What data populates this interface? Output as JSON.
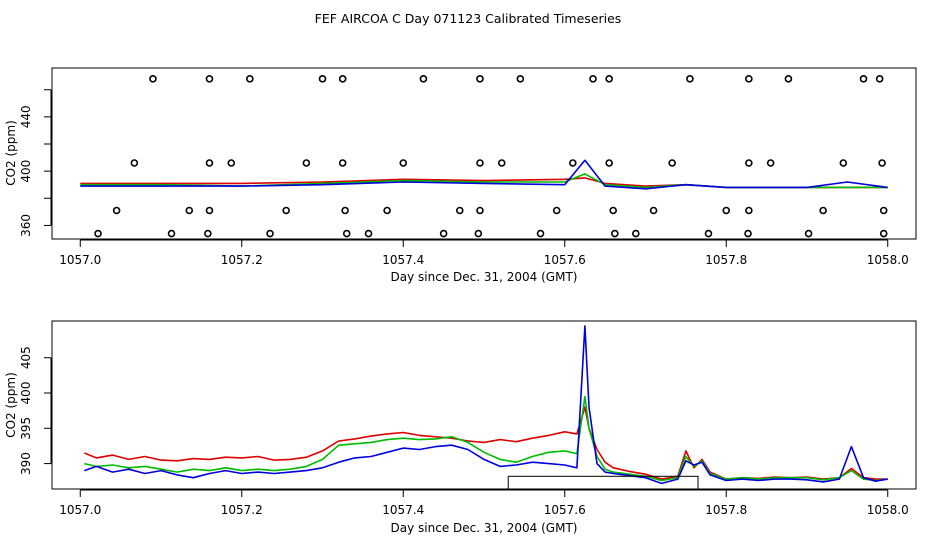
{
  "title": "FEF AIRCOA C  Day 071123  Calibrated Timeseries",
  "colors": {
    "red": "#dd0000",
    "green": "#00bb00",
    "blue": "#0000dd",
    "axis": "#000000"
  },
  "chart_data": [
    {
      "type": "line",
      "panel": "top",
      "xlabel": "Day since Dec. 31, 2004 (GMT)",
      "ylabel": "CO2 (ppm)",
      "xlim": [
        1056.965,
        1058.035
      ],
      "ylim": [
        350,
        476
      ],
      "xticks": [
        1057.0,
        1057.2,
        1057.4,
        1057.6,
        1057.8,
        1058.0
      ],
      "xtick_labels": [
        "1057.0",
        "1057.2",
        "1057.4",
        "1057.6",
        "1057.8",
        "1058.0"
      ],
      "yticks": [
        360,
        380,
        400,
        420,
        440,
        460
      ],
      "ytick_labels": [
        "360",
        "",
        "400",
        "",
        "440",
        ""
      ],
      "series": [
        {
          "name": "red",
          "color": "red",
          "x": [
            1057.0,
            1057.1,
            1057.2,
            1057.3,
            1057.4,
            1057.5,
            1057.6,
            1057.625,
            1057.65,
            1057.7,
            1057.75,
            1057.8,
            1057.85,
            1057.9,
            1057.95,
            1058.0
          ],
          "y": [
            391,
            391,
            391,
            392,
            394,
            393,
            394,
            395,
            391,
            389,
            390,
            388,
            388,
            388,
            388,
            388
          ]
        },
        {
          "name": "green",
          "color": "green",
          "x": [
            1057.0,
            1057.1,
            1057.2,
            1057.3,
            1057.4,
            1057.5,
            1057.6,
            1057.625,
            1057.65,
            1057.7,
            1057.75,
            1057.8,
            1057.85,
            1057.9,
            1057.95,
            1058.0
          ],
          "y": [
            390,
            390,
            389,
            391,
            393,
            392,
            392,
            398,
            390,
            388,
            390,
            388,
            388,
            388,
            388,
            388
          ]
        },
        {
          "name": "blue",
          "color": "blue",
          "x": [
            1057.0,
            1057.1,
            1057.2,
            1057.3,
            1057.4,
            1057.5,
            1057.6,
            1057.625,
            1057.65,
            1057.7,
            1057.75,
            1057.8,
            1057.85,
            1057.9,
            1057.95,
            1058.0
          ],
          "y": [
            389,
            389,
            389,
            390,
            392,
            391,
            390,
            408,
            389,
            387,
            390,
            388,
            388,
            388,
            392,
            388
          ]
        }
      ],
      "markers": [
        {
          "x": 1057.09,
          "y": 468
        },
        {
          "x": 1057.16,
          "y": 468
        },
        {
          "x": 1057.21,
          "y": 468
        },
        {
          "x": 1057.3,
          "y": 468
        },
        {
          "x": 1057.325,
          "y": 468
        },
        {
          "x": 1057.425,
          "y": 468
        },
        {
          "x": 1057.495,
          "y": 468
        },
        {
          "x": 1057.545,
          "y": 468
        },
        {
          "x": 1057.635,
          "y": 468
        },
        {
          "x": 1057.655,
          "y": 468
        },
        {
          "x": 1057.755,
          "y": 468
        },
        {
          "x": 1057.828,
          "y": 468
        },
        {
          "x": 1057.877,
          "y": 468
        },
        {
          "x": 1057.97,
          "y": 468
        },
        {
          "x": 1057.99,
          "y": 468
        },
        {
          "x": 1057.067,
          "y": 406
        },
        {
          "x": 1057.16,
          "y": 406
        },
        {
          "x": 1057.187,
          "y": 406
        },
        {
          "x": 1057.28,
          "y": 406
        },
        {
          "x": 1057.325,
          "y": 406
        },
        {
          "x": 1057.4,
          "y": 406
        },
        {
          "x": 1057.495,
          "y": 406
        },
        {
          "x": 1057.522,
          "y": 406
        },
        {
          "x": 1057.61,
          "y": 406
        },
        {
          "x": 1057.655,
          "y": 406
        },
        {
          "x": 1057.733,
          "y": 406
        },
        {
          "x": 1057.828,
          "y": 406
        },
        {
          "x": 1057.855,
          "y": 406
        },
        {
          "x": 1057.945,
          "y": 406
        },
        {
          "x": 1057.993,
          "y": 406
        },
        {
          "x": 1057.045,
          "y": 371
        },
        {
          "x": 1057.135,
          "y": 371
        },
        {
          "x": 1057.16,
          "y": 371
        },
        {
          "x": 1057.255,
          "y": 371
        },
        {
          "x": 1057.328,
          "y": 371
        },
        {
          "x": 1057.38,
          "y": 371
        },
        {
          "x": 1057.47,
          "y": 371
        },
        {
          "x": 1057.495,
          "y": 371
        },
        {
          "x": 1057.59,
          "y": 371
        },
        {
          "x": 1057.66,
          "y": 371
        },
        {
          "x": 1057.71,
          "y": 371
        },
        {
          "x": 1057.8,
          "y": 371
        },
        {
          "x": 1057.828,
          "y": 371
        },
        {
          "x": 1057.92,
          "y": 371
        },
        {
          "x": 1057.995,
          "y": 371
        },
        {
          "x": 1057.022,
          "y": 354
        },
        {
          "x": 1057.113,
          "y": 354
        },
        {
          "x": 1057.158,
          "y": 354
        },
        {
          "x": 1057.235,
          "y": 354
        },
        {
          "x": 1057.33,
          "y": 354
        },
        {
          "x": 1057.357,
          "y": 354
        },
        {
          "x": 1057.45,
          "y": 354
        },
        {
          "x": 1057.493,
          "y": 354
        },
        {
          "x": 1057.57,
          "y": 354
        },
        {
          "x": 1057.662,
          "y": 354
        },
        {
          "x": 1057.688,
          "y": 354
        },
        {
          "x": 1057.778,
          "y": 354
        },
        {
          "x": 1057.827,
          "y": 354
        },
        {
          "x": 1057.902,
          "y": 354
        },
        {
          "x": 1057.995,
          "y": 354
        }
      ]
    },
    {
      "type": "line",
      "panel": "bottom",
      "xlabel": "Day since Dec. 31, 2004 (GMT)",
      "ylabel": "CO2 (ppm)",
      "xlim": [
        1056.965,
        1058.035
      ],
      "ylim": [
        386.4,
        410.2
      ],
      "xticks": [
        1057.0,
        1057.2,
        1057.4,
        1057.6,
        1057.8,
        1058.0
      ],
      "xtick_labels": [
        "1057.0",
        "1057.2",
        "1057.4",
        "1057.6",
        "1057.8",
        "1058.0"
      ],
      "yticks": [
        390,
        395,
        400,
        405
      ],
      "ytick_labels": [
        "390",
        "395",
        "400",
        "405"
      ],
      "box": {
        "x0": 1057.53,
        "x1": 1057.765,
        "y0": 386.4,
        "y1": 388.2
      },
      "series": [
        {
          "name": "red",
          "color": "red",
          "x": [
            1057.005,
            1057.02,
            1057.04,
            1057.06,
            1057.08,
            1057.1,
            1057.12,
            1057.14,
            1057.16,
            1057.18,
            1057.2,
            1057.22,
            1057.24,
            1057.26,
            1057.28,
            1057.3,
            1057.32,
            1057.34,
            1057.36,
            1057.38,
            1057.4,
            1057.42,
            1057.44,
            1057.46,
            1057.48,
            1057.5,
            1057.52,
            1057.54,
            1057.56,
            1057.58,
            1057.6,
            1057.615,
            1057.625,
            1057.63,
            1057.64,
            1057.65,
            1057.66,
            1057.68,
            1057.7,
            1057.72,
            1057.74,
            1057.75,
            1057.76,
            1057.77,
            1057.78,
            1057.8,
            1057.82,
            1057.84,
            1057.86,
            1057.88,
            1057.9,
            1057.92,
            1057.94,
            1057.955,
            1057.97,
            1057.985,
            1058.0
          ],
          "y": [
            391.5,
            390.8,
            391.2,
            390.6,
            391.0,
            390.5,
            390.4,
            390.7,
            390.6,
            390.9,
            390.8,
            391.0,
            390.5,
            390.6,
            390.9,
            391.8,
            393.2,
            393.5,
            393.9,
            394.2,
            394.4,
            394.0,
            393.8,
            393.6,
            393.2,
            393.0,
            393.4,
            393.1,
            393.6,
            394.0,
            394.5,
            394.2,
            398.0,
            395.0,
            392.0,
            390.2,
            389.4,
            388.9,
            388.5,
            387.8,
            388.2,
            391.8,
            389.4,
            390.6,
            388.8,
            387.8,
            388.0,
            387.9,
            388.1,
            388.0,
            388.1,
            387.8,
            388.0,
            389.3,
            388.0,
            387.8,
            387.8
          ]
        },
        {
          "name": "green",
          "color": "green",
          "x": [
            1057.005,
            1057.02,
            1057.04,
            1057.06,
            1057.08,
            1057.1,
            1057.12,
            1057.14,
            1057.16,
            1057.18,
            1057.2,
            1057.22,
            1057.24,
            1057.26,
            1057.28,
            1057.3,
            1057.32,
            1057.34,
            1057.36,
            1057.38,
            1057.4,
            1057.42,
            1057.44,
            1057.46,
            1057.48,
            1057.5,
            1057.52,
            1057.54,
            1057.56,
            1057.58,
            1057.6,
            1057.615,
            1057.625,
            1057.63,
            1057.64,
            1057.65,
            1057.66,
            1057.68,
            1057.7,
            1057.72,
            1057.74,
            1057.75,
            1057.76,
            1057.77,
            1057.78,
            1057.8,
            1057.82,
            1057.84,
            1057.86,
            1057.88,
            1057.9,
            1057.92,
            1057.94,
            1057.955,
            1057.97,
            1057.985,
            1058.0
          ],
          "y": [
            390.0,
            389.6,
            389.8,
            389.4,
            389.6,
            389.2,
            388.8,
            389.2,
            389.0,
            389.4,
            389.0,
            389.2,
            389.0,
            389.2,
            389.6,
            390.6,
            392.6,
            392.8,
            393.0,
            393.4,
            393.6,
            393.4,
            393.5,
            393.8,
            393.0,
            391.6,
            390.6,
            390.2,
            391.0,
            391.6,
            391.8,
            391.4,
            399.5,
            395.0,
            391.0,
            389.2,
            388.8,
            388.5,
            388.2,
            387.6,
            388.0,
            391.0,
            389.6,
            390.4,
            388.6,
            387.8,
            388.0,
            387.8,
            388.0,
            388.0,
            388.0,
            387.7,
            388.0,
            389.0,
            387.8,
            387.6,
            387.8
          ]
        },
        {
          "name": "blue",
          "color": "blue",
          "x": [
            1057.005,
            1057.02,
            1057.04,
            1057.06,
            1057.08,
            1057.1,
            1057.12,
            1057.14,
            1057.16,
            1057.18,
            1057.2,
            1057.22,
            1057.24,
            1057.26,
            1057.28,
            1057.3,
            1057.32,
            1057.34,
            1057.36,
            1057.38,
            1057.4,
            1057.42,
            1057.44,
            1057.46,
            1057.48,
            1057.5,
            1057.52,
            1057.54,
            1057.56,
            1057.58,
            1057.6,
            1057.615,
            1057.625,
            1057.63,
            1057.64,
            1057.65,
            1057.66,
            1057.68,
            1057.7,
            1057.72,
            1057.74,
            1057.75,
            1057.76,
            1057.77,
            1057.78,
            1057.8,
            1057.82,
            1057.84,
            1057.86,
            1057.88,
            1057.9,
            1057.92,
            1057.94,
            1057.955,
            1057.97,
            1057.985,
            1058.0
          ],
          "y": [
            389.0,
            389.6,
            388.8,
            389.2,
            388.6,
            389.0,
            388.4,
            388.0,
            388.6,
            389.0,
            388.6,
            388.8,
            388.6,
            388.8,
            389.0,
            389.4,
            390.2,
            390.8,
            391.0,
            391.6,
            392.2,
            392.0,
            392.4,
            392.6,
            392.0,
            390.6,
            389.6,
            389.8,
            390.2,
            390.0,
            389.8,
            389.4,
            409.5,
            398.0,
            390.0,
            388.8,
            388.6,
            388.3,
            388.0,
            387.2,
            387.8,
            390.4,
            389.8,
            390.2,
            388.4,
            387.6,
            387.8,
            387.6,
            387.8,
            387.8,
            387.7,
            387.4,
            387.8,
            392.4,
            388.0,
            387.5,
            387.8
          ]
        }
      ]
    }
  ]
}
